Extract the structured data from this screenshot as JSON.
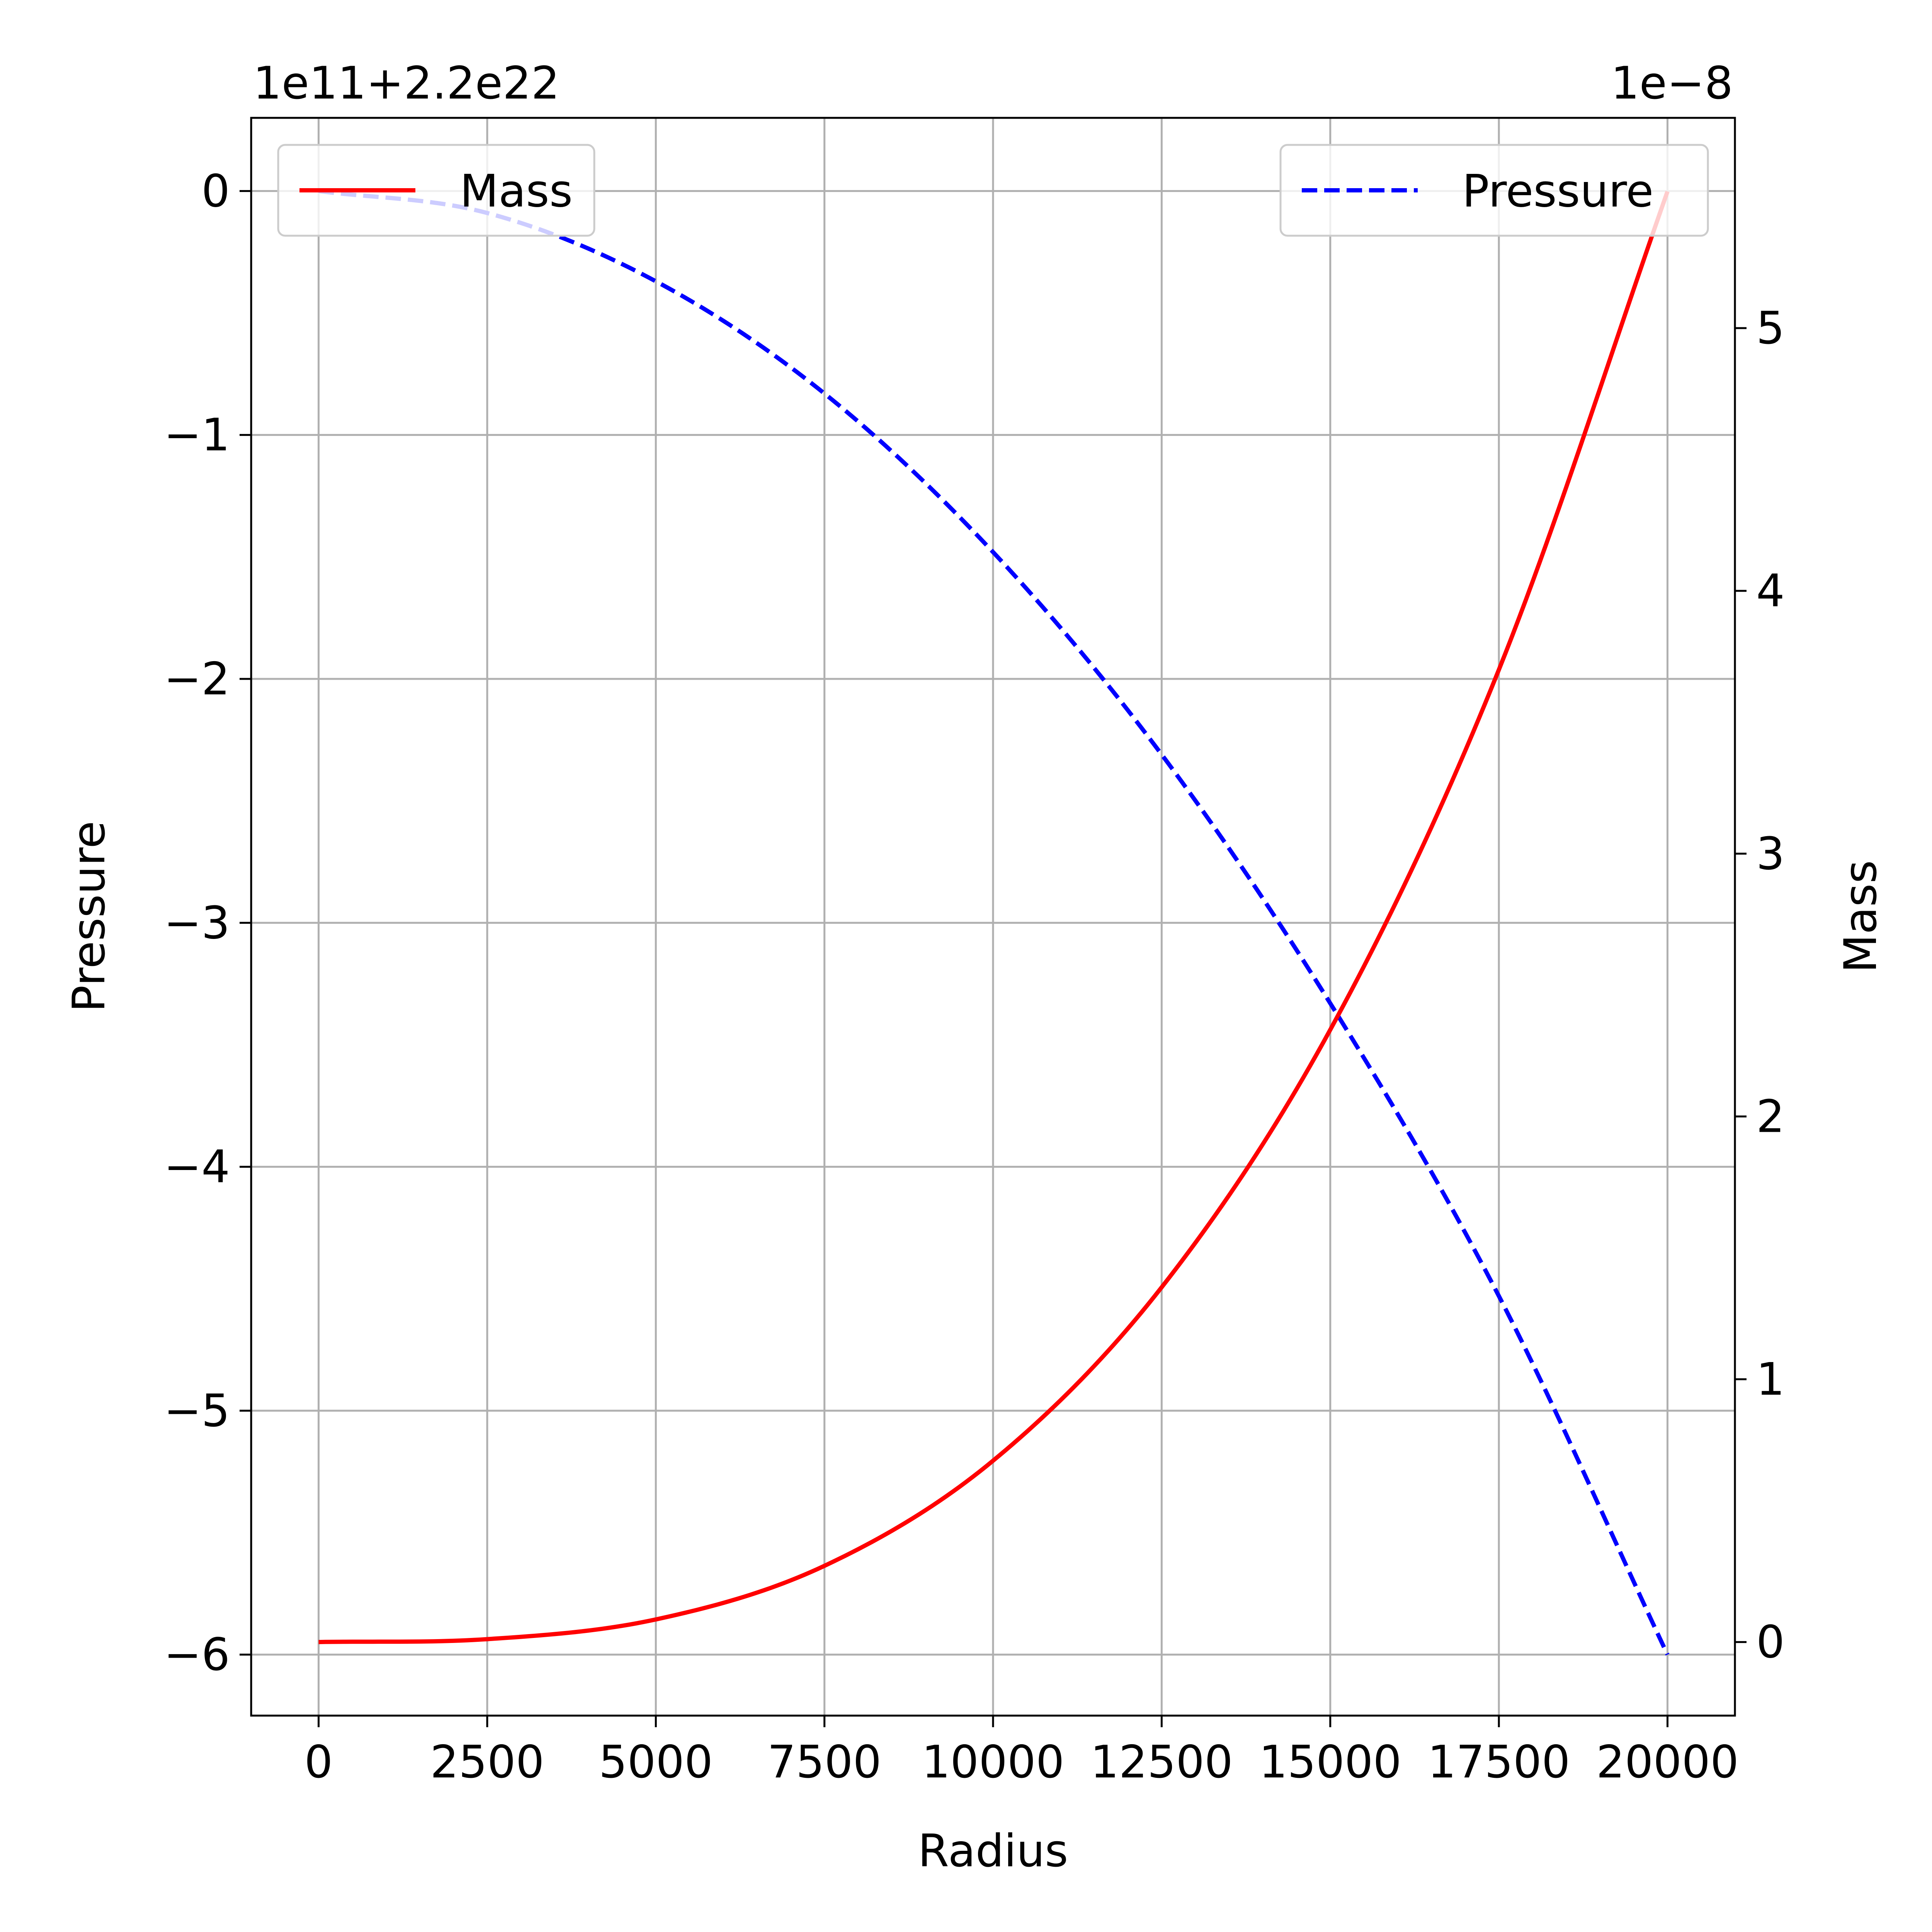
{
  "chart_data": {
    "type": "line",
    "xlabel": "Radius",
    "ylabel_left": "Pressure",
    "ylabel_right": "Mass",
    "offset_left": "1e11+2.2e22",
    "offset_right": "1e−8",
    "grid": true,
    "x_range": [
      -1000,
      21000
    ],
    "y_left_range": [
      -6.25,
      0.3
    ],
    "y_right_range": [
      -0.28,
      5.8
    ],
    "x_ticks": [
      {
        "value": 0,
        "label": "0"
      },
      {
        "value": 2500,
        "label": "2500"
      },
      {
        "value": 5000,
        "label": "5000"
      },
      {
        "value": 7500,
        "label": "7500"
      },
      {
        "value": 10000,
        "label": "10000"
      },
      {
        "value": 12500,
        "label": "12500"
      },
      {
        "value": 15000,
        "label": "15000"
      },
      {
        "value": 17500,
        "label": "17500"
      },
      {
        "value": 20000,
        "label": "20000"
      }
    ],
    "y_left_ticks": [
      {
        "value": 0,
        "label": "0"
      },
      {
        "value": -1,
        "label": "−1"
      },
      {
        "value": -2,
        "label": "−2"
      },
      {
        "value": -3,
        "label": "−3"
      },
      {
        "value": -4,
        "label": "−4"
      },
      {
        "value": -5,
        "label": "−5"
      },
      {
        "value": -6,
        "label": "−6"
      }
    ],
    "y_right_ticks": [
      {
        "value": 0,
        "label": "0"
      },
      {
        "value": 1,
        "label": "1"
      },
      {
        "value": 2,
        "label": "2"
      },
      {
        "value": 3,
        "label": "3"
      },
      {
        "value": 4,
        "label": "4"
      },
      {
        "value": 5,
        "label": "5"
      }
    ],
    "series": [
      {
        "name": "Mass",
        "axis": "right",
        "color": "#ff0000",
        "style": "solid",
        "x": [
          0,
          2500,
          5000,
          7500,
          10000,
          12500,
          15000,
          17500,
          20000
        ],
        "values": [
          0,
          0.011,
          0.086,
          0.29,
          0.69,
          1.35,
          2.33,
          3.7,
          5.52
        ]
      },
      {
        "name": "Pressure",
        "axis": "left",
        "color": "#0000ff",
        "style": "dashed",
        "x": [
          0,
          2500,
          5000,
          7500,
          10000,
          12500,
          15000,
          17500,
          20000
        ],
        "values": [
          0,
          -0.09,
          -0.37,
          -0.83,
          -1.48,
          -2.31,
          -3.33,
          -4.53,
          -6.0
        ]
      }
    ],
    "legends": [
      {
        "position": "top-left",
        "entries": [
          "Mass"
        ]
      },
      {
        "position": "top-right",
        "entries": [
          "Pressure"
        ]
      }
    ]
  }
}
